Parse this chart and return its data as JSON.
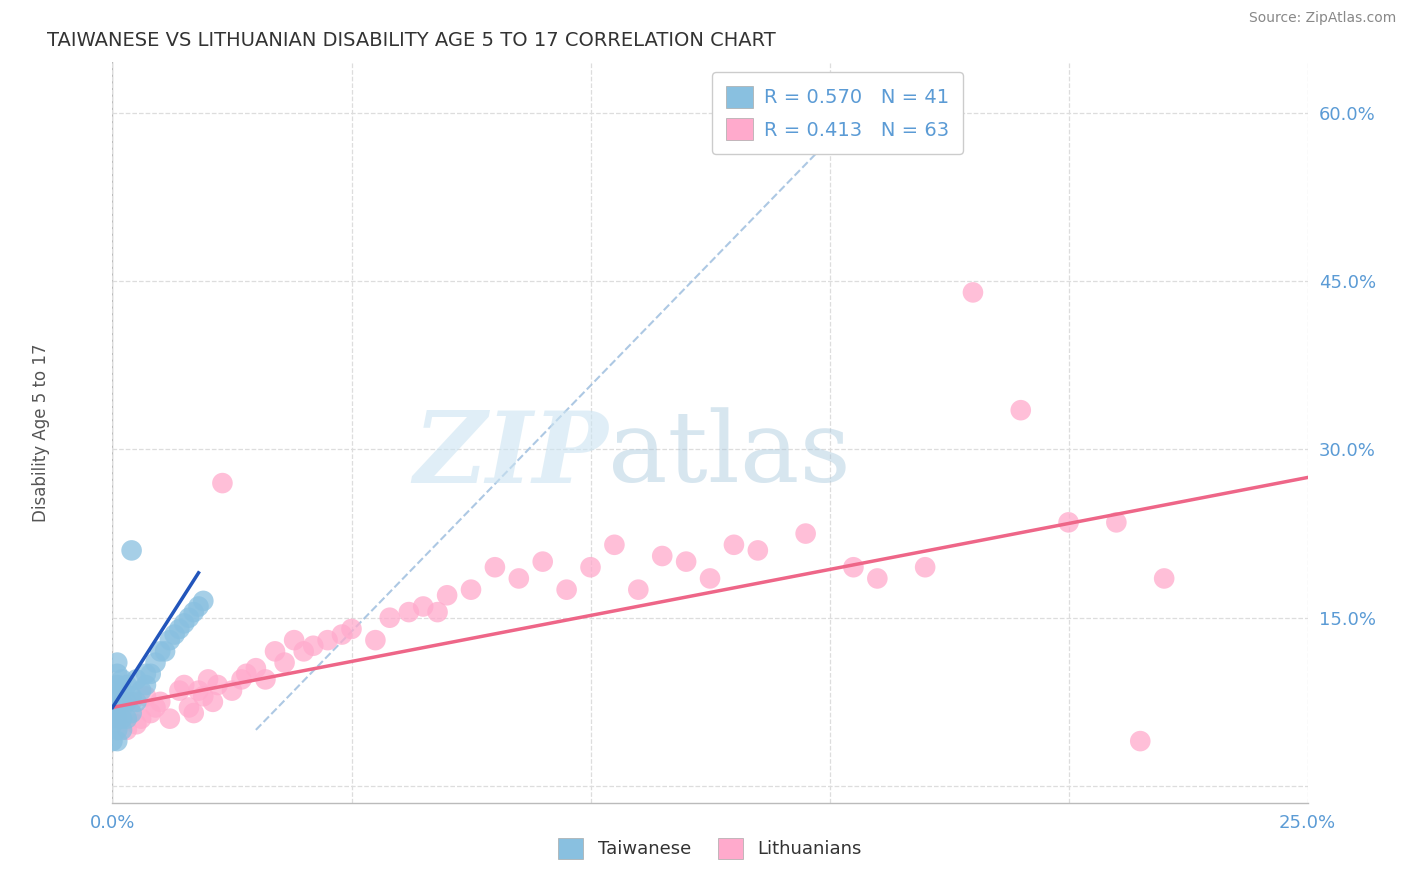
{
  "title": "TAIWANESE VS LITHUANIAN DISABILITY AGE 5 TO 17 CORRELATION CHART",
  "source": "Source: ZipAtlas.com",
  "ylabel": "Disability Age 5 to 17",
  "xlim": [
    0.0,
    0.25
  ],
  "ylim": [
    -0.015,
    0.645
  ],
  "background_color": "#ffffff",
  "grid_color": "#dddddd",
  "taiwanese_color": "#89c0e0",
  "lithuanian_color": "#ffaacc",
  "taiwanese_line_color": "#2255bb",
  "lithuanian_line_color": "#ee6688",
  "dashed_line_color": "#aaccee",
  "legend_label_1": "R = 0.570   N = 41",
  "legend_label_2": "R = 0.413   N = 63",
  "bottom_legend_1": "Taiwanese",
  "bottom_legend_2": "Lithuanians",
  "tw_x": [
    0.0,
    0.0,
    0.0,
    0.0,
    0.0,
    0.001,
    0.001,
    0.001,
    0.001,
    0.001,
    0.001,
    0.001,
    0.001,
    0.002,
    0.002,
    0.002,
    0.002,
    0.002,
    0.003,
    0.003,
    0.003,
    0.004,
    0.004,
    0.004,
    0.005,
    0.005,
    0.006,
    0.007,
    0.007,
    0.008,
    0.009,
    0.01,
    0.011,
    0.012,
    0.013,
    0.014,
    0.015,
    0.016,
    0.017,
    0.018,
    0.019
  ],
  "tw_y": [
    0.04,
    0.055,
    0.065,
    0.075,
    0.085,
    0.04,
    0.05,
    0.06,
    0.07,
    0.08,
    0.09,
    0.1,
    0.11,
    0.05,
    0.06,
    0.075,
    0.085,
    0.095,
    0.06,
    0.075,
    0.09,
    0.065,
    0.08,
    0.21,
    0.075,
    0.095,
    0.085,
    0.09,
    0.1,
    0.1,
    0.11,
    0.12,
    0.12,
    0.13,
    0.135,
    0.14,
    0.145,
    0.15,
    0.155,
    0.16,
    0.165
  ],
  "lt_x": [
    0.0,
    0.002,
    0.003,
    0.004,
    0.005,
    0.006,
    0.007,
    0.008,
    0.009,
    0.01,
    0.012,
    0.014,
    0.015,
    0.016,
    0.017,
    0.018,
    0.019,
    0.02,
    0.021,
    0.022,
    0.023,
    0.025,
    0.027,
    0.028,
    0.03,
    0.032,
    0.034,
    0.036,
    0.038,
    0.04,
    0.042,
    0.045,
    0.048,
    0.05,
    0.055,
    0.058,
    0.062,
    0.065,
    0.068,
    0.07,
    0.075,
    0.08,
    0.085,
    0.09,
    0.095,
    0.1,
    0.105,
    0.11,
    0.115,
    0.12,
    0.125,
    0.13,
    0.135,
    0.145,
    0.155,
    0.16,
    0.17,
    0.18,
    0.19,
    0.2,
    0.21,
    0.215,
    0.22
  ],
  "lt_y": [
    0.06,
    0.065,
    0.05,
    0.075,
    0.055,
    0.06,
    0.08,
    0.065,
    0.07,
    0.075,
    0.06,
    0.085,
    0.09,
    0.07,
    0.065,
    0.085,
    0.08,
    0.095,
    0.075,
    0.09,
    0.27,
    0.085,
    0.095,
    0.1,
    0.105,
    0.095,
    0.12,
    0.11,
    0.13,
    0.12,
    0.125,
    0.13,
    0.135,
    0.14,
    0.13,
    0.15,
    0.155,
    0.16,
    0.155,
    0.17,
    0.175,
    0.195,
    0.185,
    0.2,
    0.175,
    0.195,
    0.215,
    0.175,
    0.205,
    0.2,
    0.185,
    0.215,
    0.21,
    0.225,
    0.195,
    0.185,
    0.195,
    0.44,
    0.335,
    0.235,
    0.235,
    0.04,
    0.185
  ],
  "tw_line_x": [
    0.0,
    0.018
  ],
  "tw_line_y": [
    0.07,
    0.19
  ],
  "lt_line_x": [
    0.0,
    0.25
  ],
  "lt_line_y": [
    0.07,
    0.275
  ],
  "dash_line_x": [
    0.03,
    0.16
  ],
  "dash_line_y": [
    0.05,
    0.62
  ]
}
